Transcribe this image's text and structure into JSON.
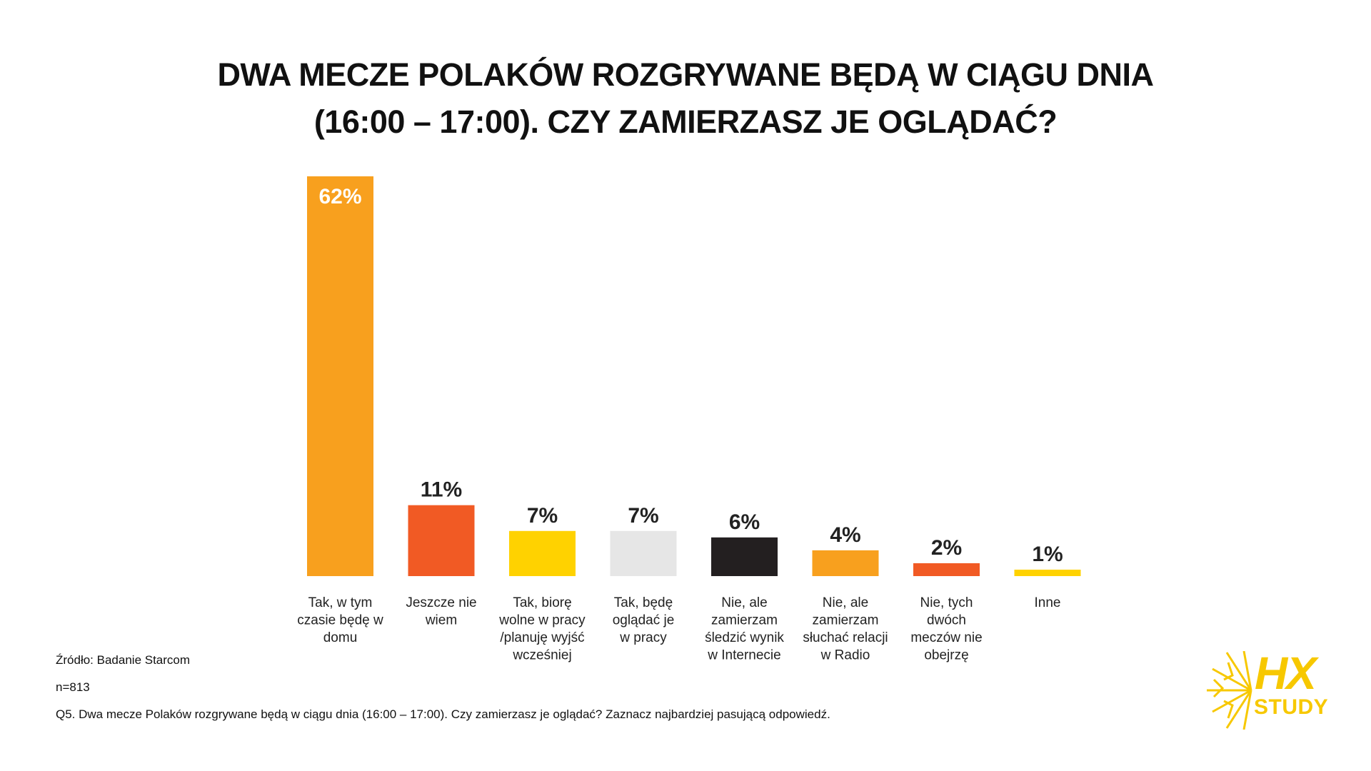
{
  "title_lines": [
    "DWA MECZE POLAKÓW ROZGRYWANE BĘDĄ W CIĄGU DNIA",
    "(16:00 – 17:00). CZY ZAMIERZASZ JE OGLĄDAĆ?"
  ],
  "chart_data": {
    "type": "bar",
    "title": "DWA MECZE POLAKÓW ROZGRYWANE BĘDĄ W CIĄGU DNIA (16:00 – 17:00). CZY ZAMIERZASZ JE OGLĄDAĆ?",
    "categories": [
      [
        "Tak, w tym",
        "czasie będę w",
        "domu"
      ],
      [
        "Jeszcze nie",
        "wiem"
      ],
      [
        "Tak, biorę",
        "wolne w pracy",
        "/planuję wyjść",
        "wcześniej"
      ],
      [
        "Tak, będę",
        "oglądać je",
        "w pracy"
      ],
      [
        "Nie, ale",
        "zamierzam",
        "śledzić wynik",
        "w Internecie"
      ],
      [
        "Nie, ale",
        "zamierzam",
        "słuchać relacji",
        "w Radio"
      ],
      [
        "Nie, tych",
        "dwóch",
        "meczów nie",
        "obejrzę"
      ],
      [
        "Inne"
      ]
    ],
    "values": [
      62,
      11,
      7,
      7,
      6,
      4,
      2,
      1
    ],
    "value_labels": [
      "62%",
      "11%",
      "7%",
      "7%",
      "6%",
      "4%",
      "2%",
      "1%"
    ],
    "colors": [
      "#F8A01E",
      "#F15A24",
      "#FFD200",
      "#E6E6E6",
      "#231F20",
      "#F8A01E",
      "#F15A24",
      "#FFD200"
    ],
    "label_inside_first": true,
    "ylim": [
      0,
      62
    ],
    "xlabel": "",
    "ylabel": "",
    "grid": false,
    "legend": "none"
  },
  "footer": {
    "source": "Źródło: Badanie Starcom",
    "sample": "n=813",
    "question": "Q5. Dwa mecze Polaków rozgrywane będą w ciągu dnia (16:00 – 17:00). Czy zamierzasz je oglądać? Zaznacz najbardziej pasującą odpowiedź."
  },
  "logo": {
    "mark": "HX",
    "word": "STUDY",
    "color": "#F7C800"
  }
}
